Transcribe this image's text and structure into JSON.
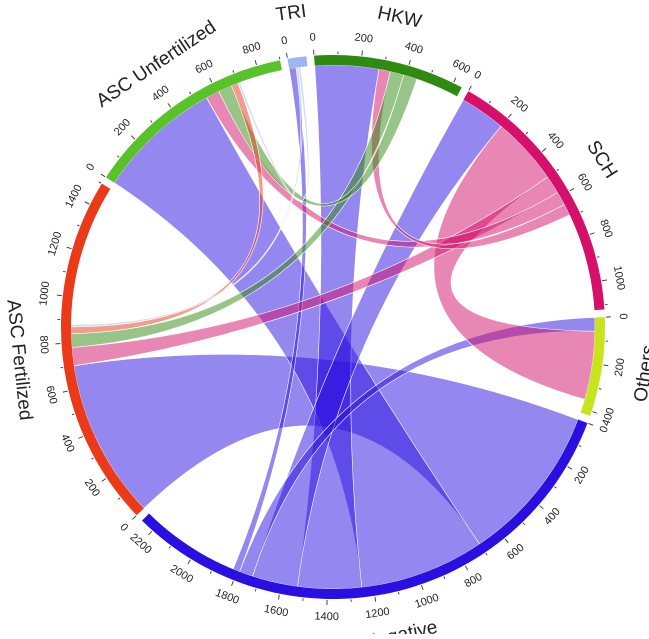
{
  "chart_data": {
    "type": "chord",
    "groups": [
      {
        "id": "hkw",
        "name": "HKW",
        "color": "#2f8a10",
        "size": 640,
        "ticks": [
          0,
          200,
          400,
          600
        ]
      },
      {
        "id": "sch",
        "name": "SCH",
        "color": "#d4106a",
        "size": 1120,
        "ticks": [
          0,
          200,
          400,
          600,
          800,
          1000
        ]
      },
      {
        "id": "others",
        "name": "Others",
        "color": "#c8e41e",
        "size": 420,
        "ticks": [
          0,
          200,
          400
        ]
      },
      {
        "id": "negative",
        "name": "Negative",
        "color": "#2a10e0",
        "size": 2260,
        "ticks": [
          0,
          200,
          400,
          600,
          800,
          1000,
          1200,
          1400,
          1600,
          1800,
          2000,
          2200
        ]
      },
      {
        "id": "ascf",
        "name": "ASC Fertilized",
        "color": "#ea3a1a",
        "size": 1500,
        "ticks": [
          0,
          200,
          400,
          600,
          800,
          1000,
          1200,
          1400
        ]
      },
      {
        "id": "ascu",
        "name": "ASC Unfertilized",
        "color": "#58c22a",
        "size": 900,
        "ticks": [
          0,
          200,
          400,
          600,
          800
        ]
      },
      {
        "id": "tri",
        "name": "TRI",
        "color": "#9fb5f0",
        "size": 80,
        "ticks": [
          0
        ]
      }
    ],
    "links": [
      {
        "source": "negative",
        "target": "ascf",
        "value": 700
      },
      {
        "source": "negative",
        "target": "ascu",
        "value": 550
      },
      {
        "source": "negative",
        "target": "hkw",
        "value": 280
      },
      {
        "source": "negative",
        "target": "sch",
        "value": 200
      },
      {
        "source": "negative",
        "target": "others",
        "value": 60
      },
      {
        "source": "negative",
        "target": "tri",
        "value": 30
      },
      {
        "source": "sch",
        "target": "others",
        "value": 300
      },
      {
        "source": "sch",
        "target": "ascf",
        "value": 80
      },
      {
        "source": "sch",
        "target": "ascu",
        "value": 60
      },
      {
        "source": "sch",
        "target": "hkw",
        "value": 50
      },
      {
        "source": "hkw",
        "target": "ascf",
        "value": 60
      },
      {
        "source": "hkw",
        "target": "ascu",
        "value": 60
      },
      {
        "source": "ascf",
        "target": "ascu",
        "value": 30
      },
      {
        "source": "tri",
        "target": "ascf",
        "value": 10
      },
      {
        "source": "tri",
        "target": "ascu",
        "value": 10
      }
    ]
  }
}
